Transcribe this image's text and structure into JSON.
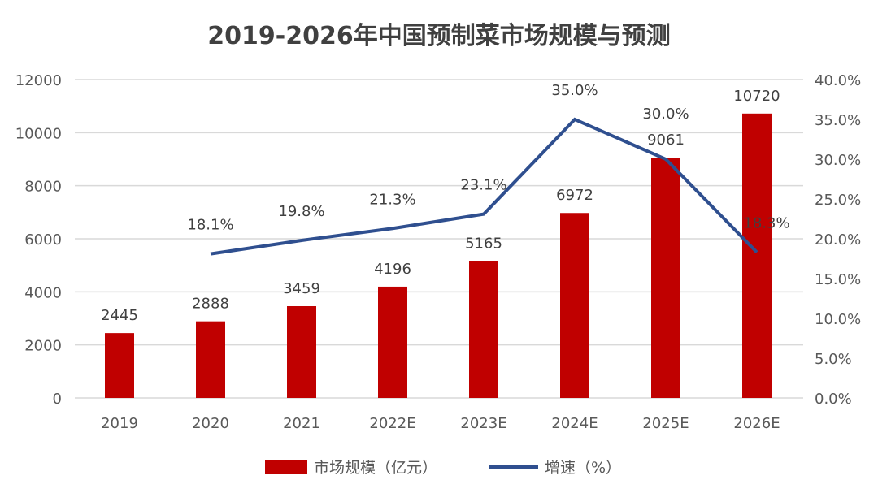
{
  "chart_data": {
    "type": "bar+line",
    "title": "2019-2026年中国预制菜市场规模与预测",
    "categories": [
      "2019",
      "2020",
      "2021",
      "2022E",
      "2023E",
      "2024E",
      "2025E",
      "2026E"
    ],
    "series": [
      {
        "name": "市场规模（亿元）",
        "type": "bar",
        "axis": "left",
        "color": "#c00000",
        "values": [
          2445,
          2888,
          3459,
          4196,
          5165,
          6972,
          9061,
          10720
        ],
        "labels": [
          "2445",
          "2888",
          "3459",
          "4196",
          "5165",
          "6972",
          "9061",
          "10720"
        ]
      },
      {
        "name": "增速（%）",
        "type": "line",
        "axis": "right",
        "color": "#2f4f8f",
        "values": [
          null,
          18.1,
          19.8,
          21.3,
          23.1,
          35.0,
          30.0,
          18.3
        ],
        "labels": [
          "",
          "18.1%",
          "19.8%",
          "21.3%",
          "23.1%",
          "35.0%",
          "30.0%",
          "18.3%"
        ]
      }
    ],
    "left_axis": {
      "ylim": [
        0,
        12000
      ],
      "ticks": [
        "0",
        "2000",
        "4000",
        "6000",
        "8000",
        "10000",
        "12000"
      ]
    },
    "right_axis": {
      "ylim": [
        0,
        40
      ],
      "ticks": [
        "0.0%",
        "5.0%",
        "10.0%",
        "15.0%",
        "20.0%",
        "25.0%",
        "30.0%",
        "35.0%",
        "40.0%"
      ]
    },
    "grid": true,
    "legend": "bottom"
  }
}
